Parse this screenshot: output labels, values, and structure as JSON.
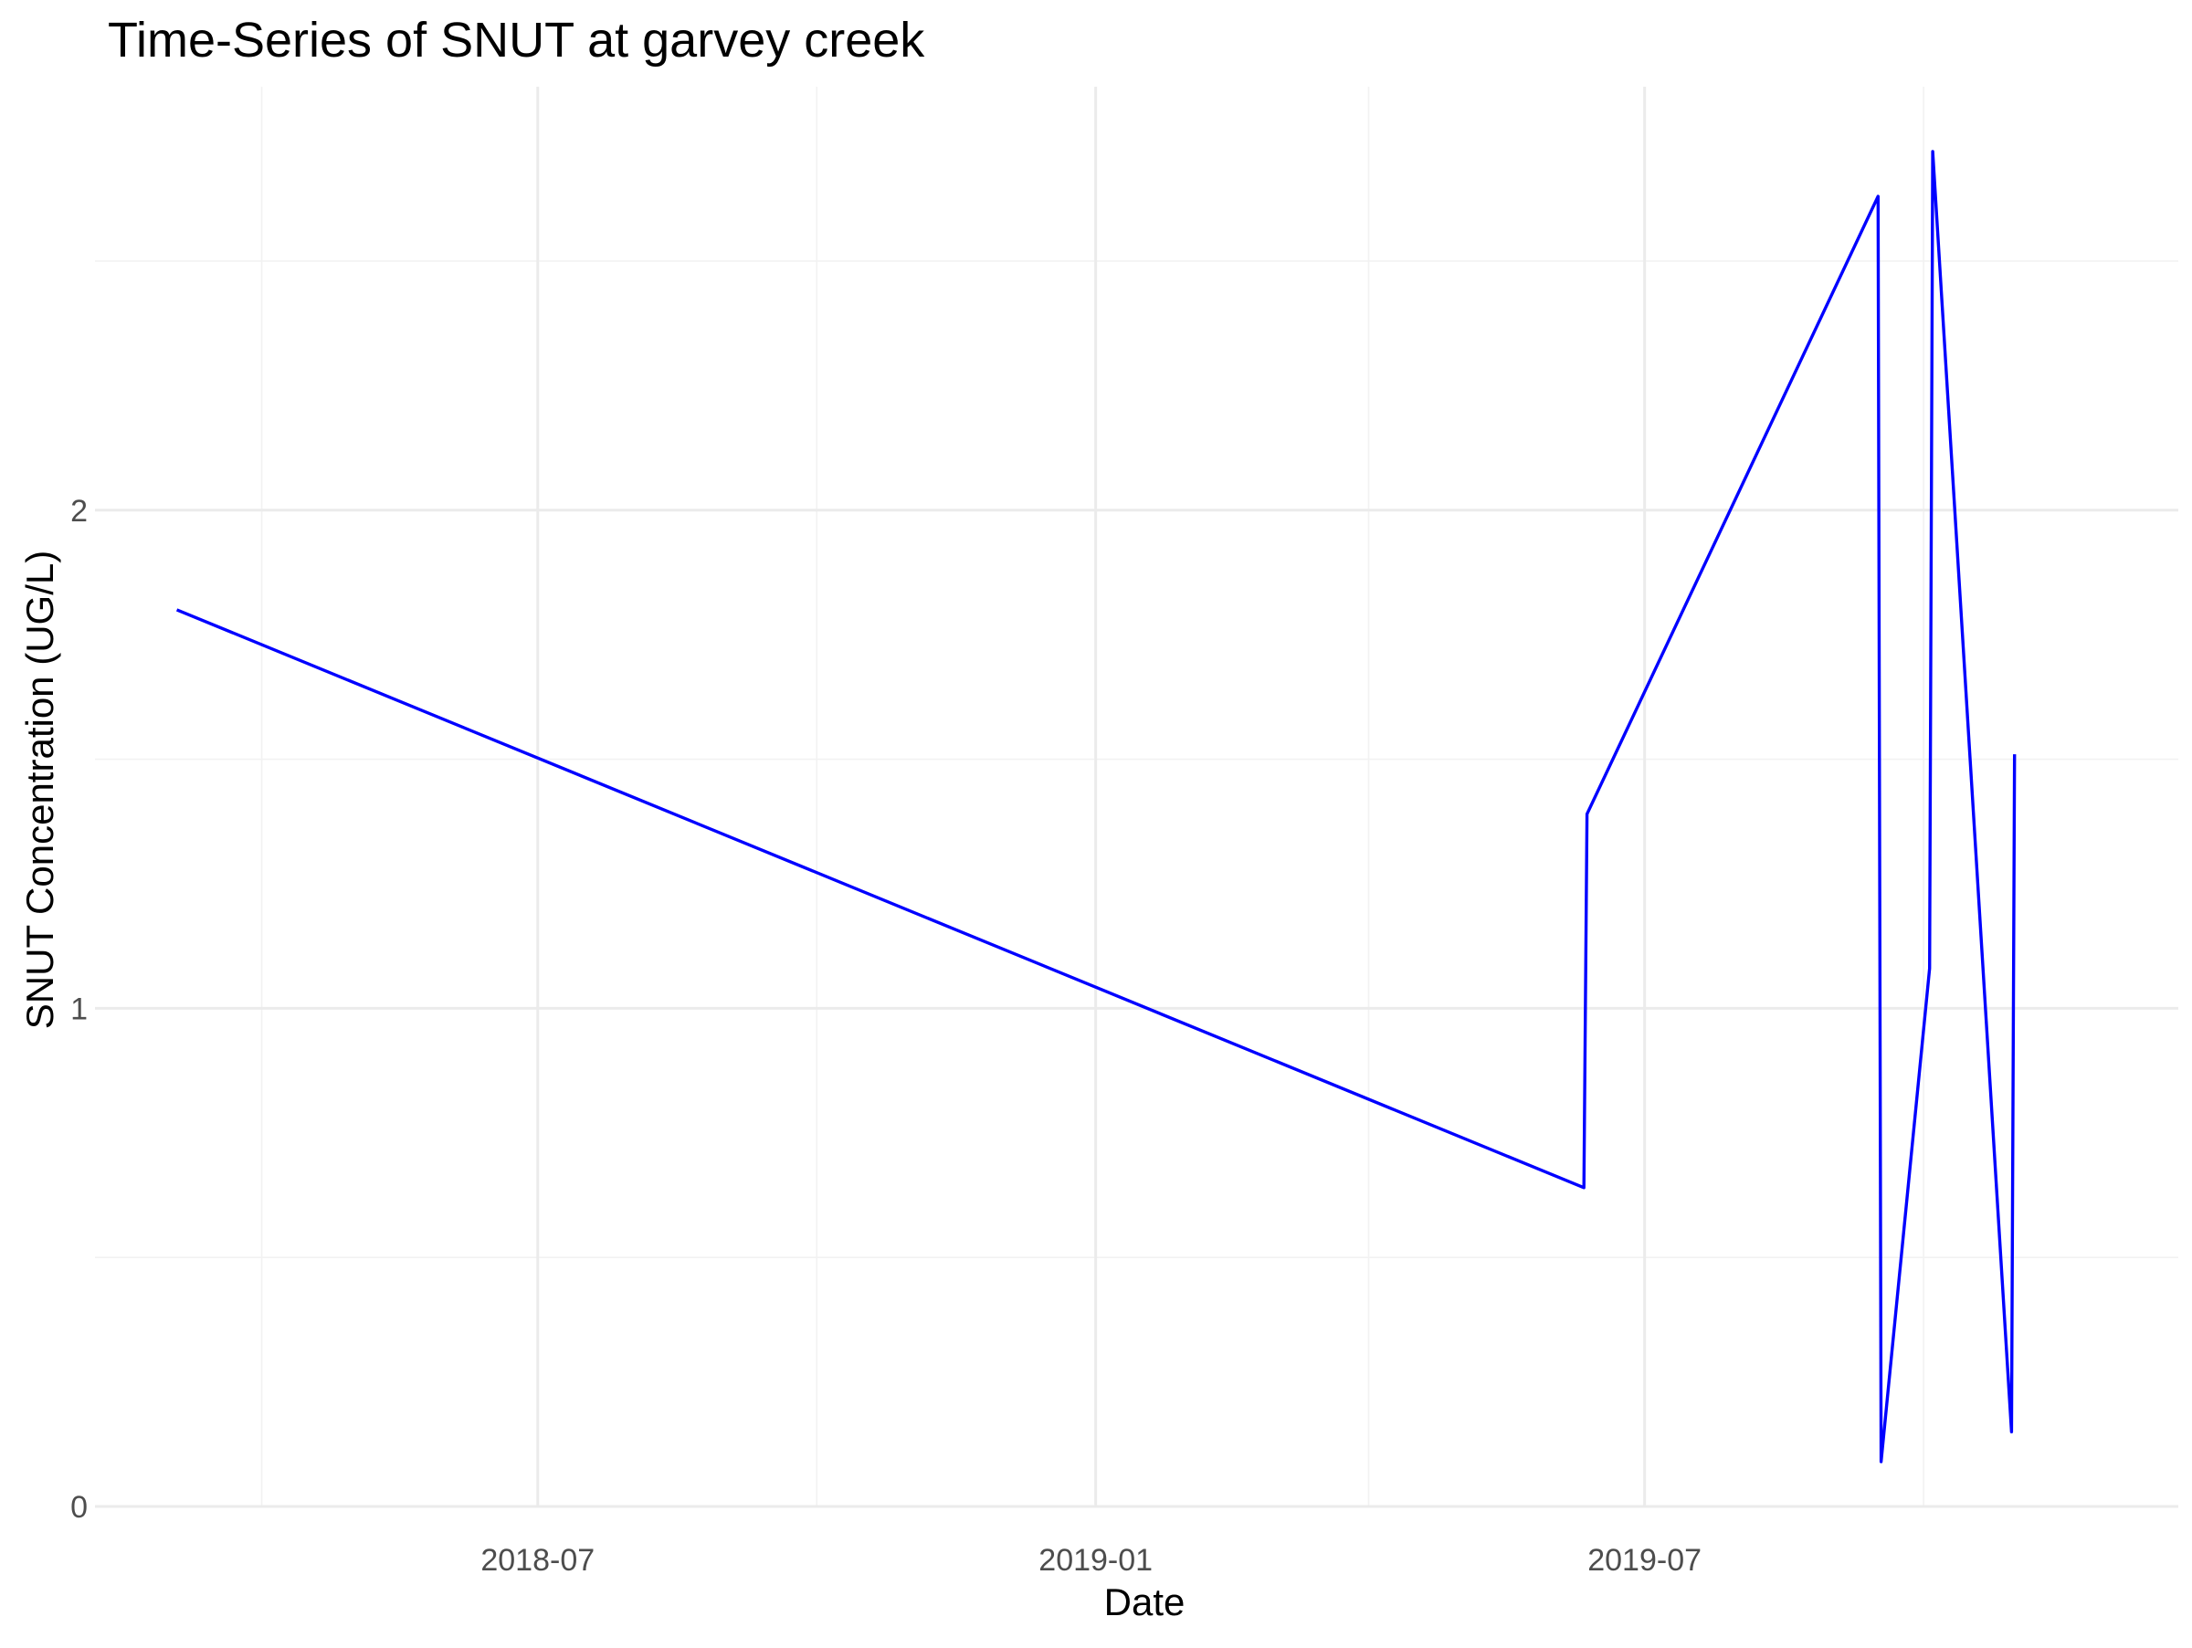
{
  "chart_data": {
    "type": "line",
    "title": "Time-Series of SNUT at garvey creek",
    "xlabel": "Date",
    "ylabel": "SNUT Concentration (UG/L)",
    "x_tick_labels": [
      "2018-07",
      "2019-01",
      "2019-07"
    ],
    "x_ticks": [
      "2018-07-01",
      "2019-01-01",
      "2019-07-01"
    ],
    "x_minor_ticks": [
      "2018-04-01",
      "2018-10-01",
      "2019-04-01",
      "2019-10-01"
    ],
    "xlim": [
      "2018-02-05",
      "2019-12-24"
    ],
    "y_tick_labels": [
      "0",
      "1",
      "2"
    ],
    "y_ticks": [
      0,
      1,
      2
    ],
    "y_minor_ticks": [
      0.5,
      1.5,
      2.5
    ],
    "ylim": [
      0,
      2.85
    ],
    "grid": true,
    "legend": "none",
    "series": [
      {
        "color": "#0000ff",
        "x": [
          "2018-03-04",
          "2019-06-11",
          "2019-06-12",
          "2019-09-16",
          "2019-09-17",
          "2019-10-03",
          "2019-10-04",
          "2019-10-30",
          "2019-10-31"
        ],
        "y": [
          1.8,
          0.64,
          1.39,
          2.63,
          0.09,
          1.08,
          2.72,
          0.15,
          1.51
        ]
      }
    ]
  }
}
